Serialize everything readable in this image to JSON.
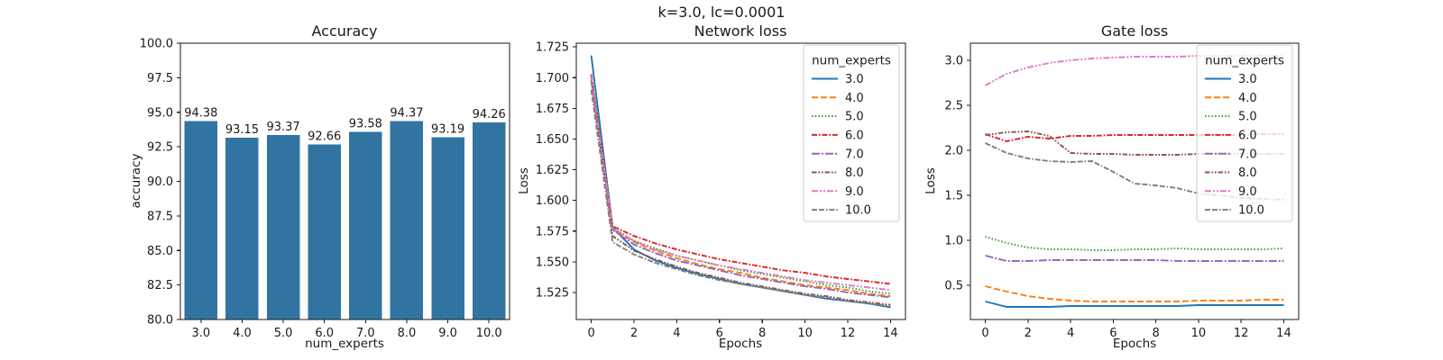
{
  "suptitle": "k=3.0, lc=0.0001",
  "text_color": "#1a1a1a",
  "background_color": "#ffffff",
  "legend_border_color": "#cccccc",
  "chart_data": [
    {
      "type": "bar",
      "title": "Accuracy",
      "xlabel": "num_experts",
      "ylabel": "accuracy",
      "categories": [
        "3.0",
        "4.0",
        "5.0",
        "6.0",
        "7.0",
        "8.0",
        "9.0",
        "10.0"
      ],
      "values": [
        94.38,
        93.15,
        93.37,
        92.66,
        93.58,
        94.37,
        93.19,
        94.26
      ],
      "bar_labels": [
        "94.38",
        "93.15",
        "93.37",
        "92.66",
        "93.58",
        "94.37",
        "93.19",
        "94.26"
      ],
      "bar_color": "#3274a1",
      "ylim": [
        80,
        100
      ],
      "ytick_values": [
        80,
        82.5,
        85,
        87.5,
        90,
        92.5,
        95,
        97.5,
        100
      ],
      "ytick_labels": [
        "80.0",
        "82.5",
        "85.0",
        "87.5",
        "90.0",
        "92.5",
        "95.0",
        "97.5",
        "100.0"
      ],
      "grid": false,
      "legend": null
    },
    {
      "type": "line",
      "title": "Network loss",
      "xlabel": "Epochs",
      "ylabel": "Loss",
      "legend_title": "num_experts",
      "legend_position": "upper right",
      "grid": false,
      "x": [
        0,
        1,
        2,
        3,
        4,
        5,
        6,
        7,
        8,
        9,
        10,
        11,
        12,
        13,
        14
      ],
      "xlim": [
        -0.7,
        14.7
      ],
      "ylim": [
        1.503,
        1.728
      ],
      "xtick_values": [
        0,
        2,
        4,
        6,
        8,
        10,
        12,
        14
      ],
      "xtick_labels": [
        "0",
        "2",
        "4",
        "6",
        "8",
        "10",
        "12",
        "14"
      ],
      "ytick_values": [
        1.525,
        1.55,
        1.575,
        1.6,
        1.625,
        1.65,
        1.675,
        1.7,
        1.725
      ],
      "ytick_labels": [
        "1.525",
        "1.550",
        "1.575",
        "1.600",
        "1.625",
        "1.650",
        "1.675",
        "1.700",
        "1.725"
      ],
      "series": [
        {
          "name": "3.0",
          "color": "#1f77b4",
          "dash": "",
          "values": [
            1.718,
            1.578,
            1.56,
            1.551,
            1.545,
            1.54,
            1.536,
            1.532,
            1.529,
            1.526,
            1.523,
            1.52,
            1.518,
            1.516,
            1.513
          ]
        },
        {
          "name": "4.0",
          "color": "#ff7f0e",
          "dash": "7 3",
          "values": [
            1.703,
            1.577,
            1.566,
            1.559,
            1.553,
            1.548,
            1.544,
            1.541,
            1.537,
            1.534,
            1.531,
            1.529,
            1.527,
            1.524,
            1.522
          ]
        },
        {
          "name": "5.0",
          "color": "#2ca02c",
          "dash": "1.5 2.2",
          "values": [
            1.697,
            1.578,
            1.567,
            1.561,
            1.555,
            1.551,
            1.547,
            1.543,
            1.54,
            1.537,
            1.534,
            1.531,
            1.529,
            1.526,
            1.524
          ]
        },
        {
          "name": "6.0",
          "color": "#d62728",
          "dash": "6 1.8 1.8 1.8",
          "values": [
            1.702,
            1.579,
            1.571,
            1.565,
            1.56,
            1.556,
            1.552,
            1.549,
            1.546,
            1.543,
            1.541,
            1.538,
            1.536,
            1.534,
            1.532
          ]
        },
        {
          "name": "7.0",
          "color": "#9467bd",
          "dash": "9 2 2 2",
          "values": [
            1.7,
            1.576,
            1.564,
            1.557,
            1.551,
            1.547,
            1.543,
            1.539,
            1.536,
            1.533,
            1.53,
            1.528,
            1.525,
            1.523,
            1.521
          ]
        },
        {
          "name": "8.0",
          "color": "#8c564b",
          "dash": "5.5 1.8 1.8 1.8 1.8 1.8",
          "values": [
            1.698,
            1.571,
            1.559,
            1.552,
            1.546,
            1.541,
            1.537,
            1.533,
            1.53,
            1.527,
            1.524,
            1.522,
            1.519,
            1.517,
            1.515
          ]
        },
        {
          "name": "9.0",
          "color": "#e377c2",
          "dash": "7 2 2 2 2 2",
          "values": [
            1.701,
            1.577,
            1.567,
            1.56,
            1.555,
            1.551,
            1.547,
            1.544,
            1.541,
            1.538,
            1.535,
            1.533,
            1.531,
            1.529,
            1.527
          ]
        },
        {
          "name": "10.0",
          "color": "#7f7f7f",
          "dash": "6 2 6 2 1.5 2",
          "values": [
            1.69,
            1.566,
            1.556,
            1.549,
            1.544,
            1.539,
            1.535,
            1.532,
            1.529,
            1.526,
            1.523,
            1.521,
            1.518,
            1.516,
            1.514
          ]
        }
      ]
    },
    {
      "type": "line",
      "title": "Gate loss",
      "xlabel": "Epochs",
      "ylabel": "Loss",
      "legend_title": "num_experts",
      "legend_position": "upper right",
      "grid": false,
      "x": [
        0,
        1,
        2,
        3,
        4,
        5,
        6,
        7,
        8,
        9,
        10,
        11,
        12,
        13,
        14
      ],
      "xlim": [
        -0.7,
        14.7
      ],
      "ylim": [
        0.12,
        3.19
      ],
      "xtick_values": [
        0,
        2,
        4,
        6,
        8,
        10,
        12,
        14
      ],
      "xtick_labels": [
        "0",
        "2",
        "4",
        "6",
        "8",
        "10",
        "12",
        "14"
      ],
      "ytick_values": [
        0.5,
        1.0,
        1.5,
        2.0,
        2.5,
        3.0
      ],
      "ytick_labels": [
        "0.5",
        "1.0",
        "1.5",
        "2.0",
        "2.5",
        "3.0"
      ],
      "series": [
        {
          "name": "3.0",
          "color": "#1f77b4",
          "dash": "",
          "values": [
            0.32,
            0.26,
            0.26,
            0.26,
            0.27,
            0.27,
            0.27,
            0.27,
            0.27,
            0.27,
            0.28,
            0.28,
            0.28,
            0.28,
            0.28
          ]
        },
        {
          "name": "4.0",
          "color": "#ff7f0e",
          "dash": "7 3",
          "values": [
            0.49,
            0.43,
            0.38,
            0.35,
            0.33,
            0.32,
            0.32,
            0.32,
            0.32,
            0.32,
            0.33,
            0.33,
            0.33,
            0.34,
            0.34
          ]
        },
        {
          "name": "5.0",
          "color": "#2ca02c",
          "dash": "1.5 2.2",
          "values": [
            1.04,
            0.97,
            0.92,
            0.9,
            0.9,
            0.89,
            0.89,
            0.9,
            0.9,
            0.91,
            0.9,
            0.9,
            0.9,
            0.9,
            0.91
          ]
        },
        {
          "name": "6.0",
          "color": "#d62728",
          "dash": "6 1.8 1.8 1.8",
          "values": [
            2.18,
            2.1,
            2.15,
            2.13,
            2.16,
            2.16,
            2.17,
            2.17,
            2.17,
            2.17,
            2.17,
            2.17,
            2.17,
            2.18,
            2.18
          ]
        },
        {
          "name": "7.0",
          "color": "#9467bd",
          "dash": "9 2 2 2",
          "values": [
            0.83,
            0.77,
            0.77,
            0.78,
            0.78,
            0.78,
            0.78,
            0.78,
            0.78,
            0.77,
            0.77,
            0.77,
            0.77,
            0.77,
            0.77
          ]
        },
        {
          "name": "8.0",
          "color": "#8c564b",
          "dash": "5.5 1.8 1.8 1.8 1.8 1.8",
          "values": [
            2.17,
            2.2,
            2.21,
            2.16,
            1.97,
            1.96,
            1.96,
            1.95,
            1.95,
            1.95,
            1.96,
            1.96,
            1.96,
            1.96,
            1.96
          ]
        },
        {
          "name": "9.0",
          "color": "#e377c2",
          "dash": "7 2 2 2 2 2",
          "values": [
            2.72,
            2.85,
            2.92,
            2.97,
            3.0,
            3.02,
            3.03,
            3.04,
            3.04,
            3.04,
            3.05,
            3.05,
            3.05,
            3.05,
            3.05
          ]
        },
        {
          "name": "10.0",
          "color": "#7f7f7f",
          "dash": "6 2 6 2 1.5 2",
          "values": [
            2.08,
            1.97,
            1.91,
            1.88,
            1.87,
            1.88,
            1.76,
            1.63,
            1.61,
            1.58,
            1.52,
            1.5,
            1.47,
            1.46,
            1.45
          ]
        }
      ]
    }
  ]
}
